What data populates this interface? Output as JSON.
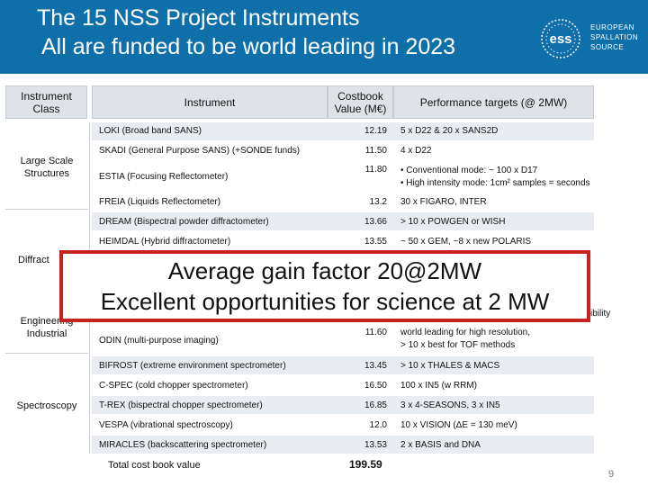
{
  "header": {
    "title_line1": "The 15 NSS Project Instruments",
    "title_line2": "All are funded to be world leading in 2023",
    "logo_text": [
      "EUROPEAN",
      "SPALLATION",
      "SOURCE"
    ],
    "logo_mark": "ess"
  },
  "table_header": {
    "class": "Instrument Class",
    "instrument": "Instrument",
    "cost": "Costbook Value (M€)",
    "targets": "Performance targets (@ 2MW)"
  },
  "classes": [
    "Large Scale Structures",
    "Diffract",
    "Engineering Industrial",
    "Spectroscopy"
  ],
  "rows": [
    {
      "instrument": "LOKI (Broad band SANS)",
      "cost": "12.19",
      "target": "5 x D22 & 20 x SANS2D"
    },
    {
      "instrument": "SKADI (General Purpose SANS) (+SONDE funds)",
      "cost": "11.50",
      "target": "4 x D22"
    },
    {
      "instrument": "ESTIA (Focusing Reflectometer)",
      "cost": "11.80",
      "target": "• Conventional mode: ~ 100 x D17",
      "target2": "• High intensity mode: 1cm² samples = seconds"
    },
    {
      "instrument": "FREIA (Liquids Reflectometer)",
      "cost": "13.2",
      "target": "30 x FIGARO, INTER"
    },
    {
      "instrument": "DREAM (Bispectral powder diffractometer)",
      "cost": "13.66",
      "target": "> 10 x POWGEN or WISH"
    },
    {
      "instrument": "HEIMDAL (Hybrid diffractometer)",
      "cost": "13.55",
      "target": "~ 50 x GEM, ~8 x new POLARIS"
    },
    {
      "instrument": "ODIN (multi-purpose imaging)",
      "cost": "11.60",
      "target": "world leading for high resolution,",
      "target2": "> 10 x best for TOF methods"
    },
    {
      "instrument": "BIFROST (extreme environment spectrometer)",
      "cost": "13.45",
      "target": "> 10 x THALES & MACS"
    },
    {
      "instrument": "C-SPEC (cold chopper spectrometer)",
      "cost": "16.50",
      "target": "100 x IN5 (w RRM)"
    },
    {
      "instrument": "T-REX (bispectral chopper spectrometer)",
      "cost": "16.85",
      "target": "3 x 4-SEASONS, 3 x IN5"
    },
    {
      "instrument": "VESPA (vibrational spectroscopy)",
      "cost": "12.0",
      "target": "10 x VISION (ΔE = 130 meV)"
    },
    {
      "instrument": "MIRACLES (backscattering spectrometer)",
      "cost": "13.53",
      "target": "2 x BASIS and DNA"
    }
  ],
  "hidden_fragment": "ibility",
  "total": {
    "label": "Total cost book value",
    "value": "199.59"
  },
  "overlay": {
    "line1": "Average gain factor 20@2MW",
    "line2": "Excellent opportunities for science at 2 MW",
    "border_color": "#c6221f"
  },
  "page_number": "9",
  "colors": {
    "header_bg": "#0f6fa8",
    "row_shade": "#e9edf2",
    "header_cell": "#dfe3e8"
  }
}
